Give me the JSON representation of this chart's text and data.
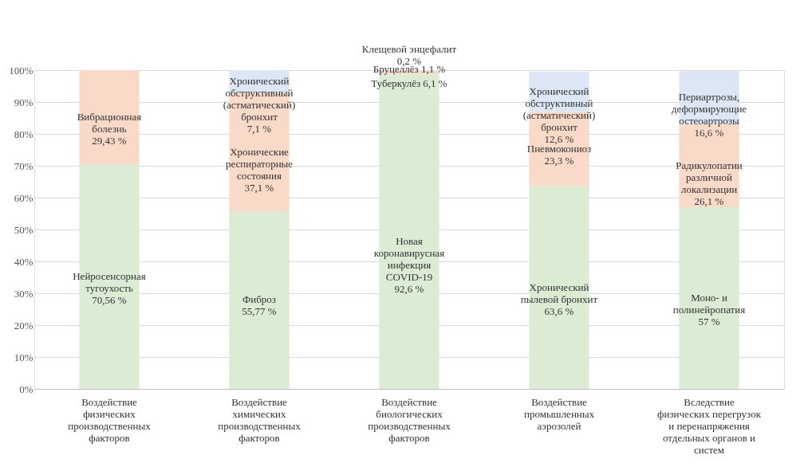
{
  "chart_data": {
    "type": "bar",
    "stacked": true,
    "categories": [
      "Воздействие\nфизических\nпроизводственных\nфакторов",
      "Воздействие\nхимических\nпроизводственных\nфакторов",
      "Воздействие\nбиологических\nпроизводственных\nфакторов",
      "Воздействие\nпромышленных\nаэрозолей",
      "Вследствие\nфизических перегрузок\nи перенапряжения\nотдельных органов и\nсистем"
    ],
    "series": [
      {
        "color": "#dcebd4",
        "values": [
          70.56,
          55.77,
          92.6,
          63.6,
          57
        ],
        "value_labels": [
          "Нейросенсорная\nтугоухость\n70,56 %",
          "Фиброз\n55,77 %",
          "Новая\nкоронавирусная\nинфекция\nCOVID-19\n92,6 %",
          "Хронический\nпылевой бронхит\n63,6 %",
          "Моно- и\nполинейропатия\n57 %"
        ]
      },
      {
        "colors": [
          "#f9d9c7",
          "#f9d9c7",
          "#dcebd4",
          "#f9d9c7",
          "#f9d9c7"
        ],
        "values": [
          29.43,
          37.1,
          6.1,
          23.3,
          26.1
        ],
        "value_labels": [
          "Вибрационная\nболезнь\n29,43 %",
          "Хронические\nреспираторные\nсостояния\n37,1 %",
          "Туберкулёз 6,1 %",
          "Пневмокониоз\n23,3 %",
          "Радикулопатии\nразличной\nлокализации\n26,1 %"
        ]
      },
      {
        "colors": [
          null,
          "#dce6f4",
          "#f9d9c7",
          "#dce6f4",
          "#dce6f4"
        ],
        "values": [
          null,
          7.1,
          1.1,
          12.6,
          16.6
        ],
        "value_labels": [
          null,
          "Хронический\nобструктивный\n(астматический)\nбронхит\n7,1 %",
          "Бруцеллёз 1,1 %",
          "Хронический\nобструктивный\n(астматический)\nбронхит\n12,6 %",
          "Периартрозы,\nдеформирующие\nостеоартрозы\n16,6 %"
        ]
      },
      {
        "color": "#dce6f4",
        "values": [
          null,
          null,
          0.2,
          null,
          null
        ],
        "value_labels": [
          null,
          null,
          "Клещевой энцефалит\n0,2 %",
          null,
          null
        ]
      }
    ],
    "ylim": [
      0,
      100
    ],
    "yticks": [
      {
        "value": 0,
        "label": "0%"
      },
      {
        "value": 10,
        "label": "10%"
      },
      {
        "value": 20,
        "label": "20%"
      },
      {
        "value": 30,
        "label": "30%"
      },
      {
        "value": 40,
        "label": "40%"
      },
      {
        "value": 50,
        "label": "50%"
      },
      {
        "value": 60,
        "label": "60%"
      },
      {
        "value": 70,
        "label": "70%"
      },
      {
        "value": 80,
        "label": "80%"
      },
      {
        "value": 90,
        "label": "90%"
      },
      {
        "value": 100,
        "label": "100%"
      }
    ],
    "grid": "y"
  }
}
